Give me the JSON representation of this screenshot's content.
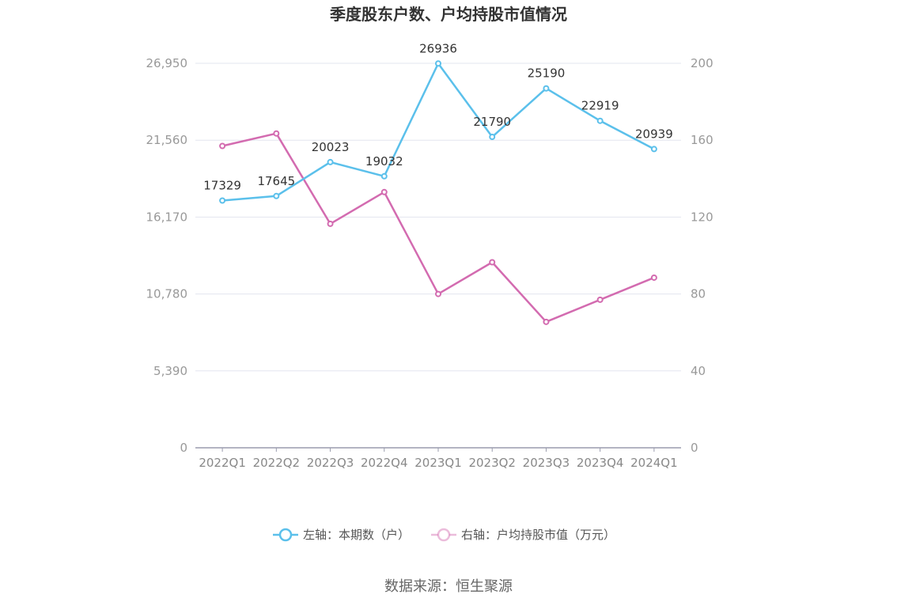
{
  "chart_data": {
    "type": "line",
    "title": "季度股东户数、户均持股市值情况",
    "categories": [
      "2022Q1",
      "2022Q2",
      "2022Q3",
      "2022Q4",
      "2023Q1",
      "2023Q2",
      "2023Q3",
      "2023Q4",
      "2024Q1"
    ],
    "left_axis": {
      "ticks": [
        "0",
        "5,390",
        "10,780",
        "16,170",
        "21,560",
        "26,950"
      ],
      "ylim": [
        0,
        26950
      ]
    },
    "right_axis": {
      "ticks": [
        "0",
        "40",
        "80",
        "120",
        "160",
        "200"
      ],
      "ylim": [
        0,
        200
      ]
    },
    "series": [
      {
        "name": "左轴：本期数（户）",
        "axis": "left",
        "color": "#5bc0eb",
        "values": [
          17329,
          17645,
          20023,
          19032,
          26936,
          21790,
          25190,
          22919,
          20939
        ],
        "labels": [
          "17329",
          "17645",
          "20023",
          "19032",
          "26936",
          "21790",
          "25190",
          "22919",
          "20939"
        ]
      },
      {
        "name": "右轴：户均持股市值（万元）",
        "axis": "right",
        "color": "#d36bb0",
        "values": [
          157,
          163.5,
          116.5,
          133,
          80,
          96.5,
          65.5,
          77,
          88.5
        ]
      }
    ],
    "grid": true,
    "legend_position": "bottom"
  },
  "source": "数据来源：恒生聚源"
}
